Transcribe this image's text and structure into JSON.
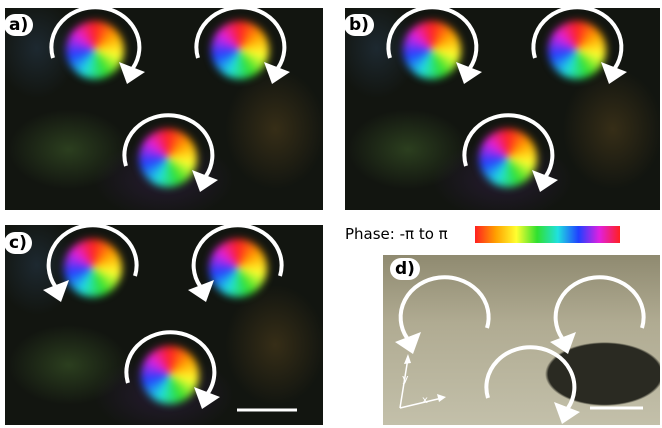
{
  "panels": [
    {
      "label": "a)"
    },
    {
      "label": "b)"
    },
    {
      "label": "c)"
    },
    {
      "label": "d)"
    }
  ],
  "colorbar": {
    "label": "Phase: -π to π"
  },
  "axes": {
    "y": "y",
    "x": "x"
  }
}
